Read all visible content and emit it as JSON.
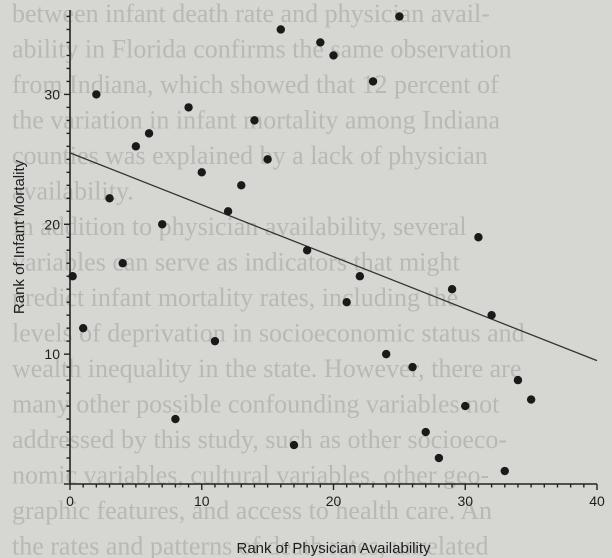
{
  "background_text": [
    "between infant death rate and physician avail-",
    "ability in Florida confirms the same observation",
    "from Indiana, which showed that 12 percent of",
    "the variation in infant mortality among Indiana",
    "counties was explained by a lack of physician",
    "availability.",
    "In addition to physician availability, several",
    "variables can serve as indicators that might",
    "predict infant mortality rates, including the",
    "levels of deprivation in socioeconomic status and",
    "wealth inequality in the state. However, there are",
    "many other possible confounding variables not",
    "addressed by this study, such as other socioeco-",
    "nomic variables, cultural variables, other geo-",
    "graphic features, and access to health care. An",
    "the rates and patterns of death rates, unrelated"
  ],
  "chart_data": {
    "type": "scatter",
    "xlabel": "Rank of Physician Availability",
    "ylabel": "Rank of Infant Mortality",
    "xlim": [
      0,
      40
    ],
    "ylim": [
      0,
      36.5
    ],
    "xticks": [
      0,
      10,
      20,
      30,
      40
    ],
    "yticks": [
      10,
      20,
      30
    ],
    "minor_tick_step": 1,
    "grid": false,
    "points": [
      [
        0.2,
        16
      ],
      [
        1.0,
        12
      ],
      [
        2.0,
        30
      ],
      [
        3.0,
        22
      ],
      [
        4.0,
        17
      ],
      [
        5.0,
        26
      ],
      [
        6.0,
        27
      ],
      [
        7.0,
        20
      ],
      [
        8.0,
        5
      ],
      [
        9.0,
        29
      ],
      [
        10.0,
        24
      ],
      [
        11.0,
        11
      ],
      [
        12.0,
        21
      ],
      [
        13.0,
        23
      ],
      [
        14.0,
        28
      ],
      [
        15.0,
        25
      ],
      [
        16.0,
        35
      ],
      [
        17.0,
        3
      ],
      [
        18.0,
        18
      ],
      [
        19.0,
        34
      ],
      [
        20.0,
        33
      ],
      [
        21.0,
        14
      ],
      [
        22.0,
        16
      ],
      [
        23.0,
        31
      ],
      [
        24.0,
        10
      ],
      [
        25.0,
        36
      ],
      [
        26.0,
        9
      ],
      [
        27.0,
        4
      ],
      [
        28.0,
        2
      ],
      [
        29.0,
        15
      ],
      [
        30.0,
        6
      ],
      [
        31.0,
        19
      ],
      [
        32.0,
        13
      ],
      [
        33.0,
        1
      ],
      [
        34.0,
        8
      ],
      [
        35.0,
        6.5
      ]
    ],
    "trendline": {
      "x": [
        0,
        40
      ],
      "y": [
        25.5,
        9.5
      ]
    }
  }
}
